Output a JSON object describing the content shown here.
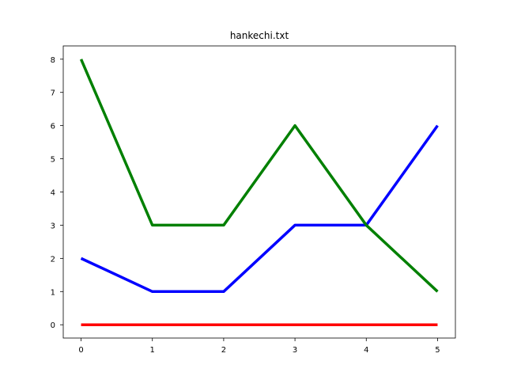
{
  "chart_data": {
    "type": "line",
    "title": "hankechi.txt",
    "xlabel": "",
    "ylabel": "",
    "x": [
      0,
      1,
      2,
      3,
      4,
      5
    ],
    "xlim": [
      -0.25,
      5.25
    ],
    "ylim": [
      -0.4,
      8.4
    ],
    "xticks": [
      "0",
      "1",
      "2",
      "3",
      "4",
      "5"
    ],
    "yticks": [
      "0",
      "1",
      "2",
      "3",
      "4",
      "5",
      "6",
      "7",
      "8"
    ],
    "grid": false,
    "legend": "none",
    "series": [
      {
        "color": "#0000ff",
        "values": [
          2,
          1,
          1,
          3,
          3,
          6
        ]
      },
      {
        "color": "#008000",
        "values": [
          8,
          3,
          3,
          6,
          3,
          1
        ]
      },
      {
        "color": "#ff0000",
        "values": [
          0,
          0,
          0,
          0,
          0,
          0
        ]
      }
    ]
  }
}
